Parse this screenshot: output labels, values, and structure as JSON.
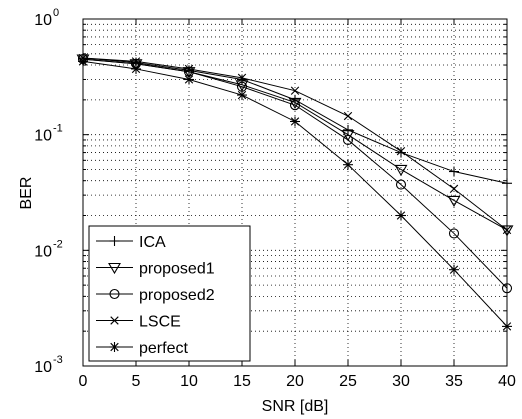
{
  "chart_data": {
    "type": "line",
    "xlabel": "SNR [dB]",
    "ylabel": "BER",
    "yscale": "log",
    "xlim": [
      0,
      40
    ],
    "ylim": [
      0.001,
      1
    ],
    "grid": true,
    "grid_style": "dotted",
    "legend_position": "bottom-left",
    "x_ticks": [
      "0",
      "5",
      "10",
      "15",
      "20",
      "25",
      "30",
      "35",
      "40"
    ],
    "y_ticks": [
      {
        "base": "10",
        "exp": "0",
        "value": 1
      },
      {
        "base": "10",
        "exp": "-1",
        "value": 0.1
      },
      {
        "base": "10",
        "exp": "-2",
        "value": 0.01
      },
      {
        "base": "10",
        "exp": "-3",
        "value": 0.001
      }
    ],
    "x": [
      0,
      5,
      10,
      15,
      20,
      25,
      30,
      35,
      40
    ],
    "series": [
      {
        "name": "ICA",
        "marker": "plus",
        "values": [
          0.46,
          0.42,
          0.36,
          0.3,
          0.2,
          0.11,
          0.07,
          0.048,
          0.038
        ]
      },
      {
        "name": "proposed1",
        "marker": "triangle-down",
        "values": [
          0.45,
          0.41,
          0.35,
          0.27,
          0.19,
          0.1,
          0.05,
          0.027,
          0.015
        ]
      },
      {
        "name": "proposed2",
        "marker": "circle",
        "values": [
          0.45,
          0.41,
          0.35,
          0.26,
          0.18,
          0.09,
          0.037,
          0.014,
          0.0047
        ]
      },
      {
        "name": "LSCE",
        "marker": "x",
        "values": [
          0.46,
          0.43,
          0.37,
          0.31,
          0.24,
          0.145,
          0.072,
          0.034,
          0.015
        ]
      },
      {
        "name": "perfect",
        "marker": "asterisk",
        "values": [
          0.43,
          0.37,
          0.3,
          0.22,
          0.13,
          0.055,
          0.02,
          0.0068,
          0.0022
        ]
      }
    ]
  }
}
